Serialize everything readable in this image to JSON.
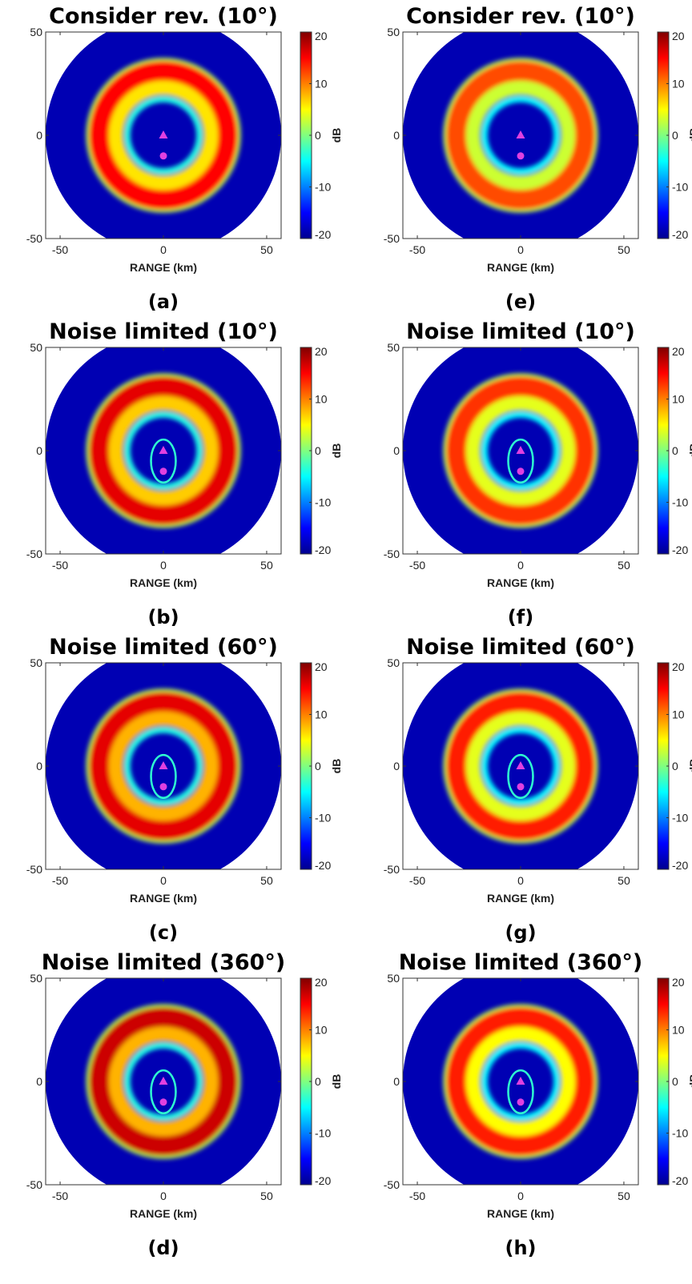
{
  "chart_data": [
    {
      "type": "heatmap",
      "panel_label": "(a)",
      "title": "Consider rev. (10°)",
      "xlabel": "RANGE (km)",
      "ylabel": "",
      "xlim": [
        -57,
        57
      ],
      "ylim": [
        -50,
        50
      ],
      "xticks": [
        -50,
        0,
        50
      ],
      "yticks": [
        -50,
        0,
        50
      ],
      "colorbar": {
        "label": "dB",
        "range": [
          -20,
          20
        ],
        "ticks": [
          20,
          10,
          0,
          -10,
          -20
        ],
        "colormap": "jet"
      },
      "markers": [
        {
          "shape": "triangle",
          "x": 0,
          "y": 0,
          "color": "#e040e0"
        },
        {
          "shape": "circle",
          "x": 0,
          "y": -10,
          "color": "#e040e0"
        }
      ],
      "disk_radius_km": 57,
      "inner_shadow_km": 0,
      "rings": [
        {
          "radius_km": 36,
          "width_km": 3,
          "value_db": 2
        },
        {
          "radius_km": 31,
          "width_km": 10,
          "value_db": 15
        },
        {
          "radius_km": 23,
          "width_km": 7,
          "value_db": 6
        },
        {
          "radius_km": 17.5,
          "width_km": 3,
          "value_db": -4
        }
      ]
    },
    {
      "type": "heatmap",
      "panel_label": "(b)",
      "title": "Noise limited (10°)",
      "xlabel": "RANGE (km)",
      "ylabel": "",
      "xlim": [
        -57,
        57
      ],
      "ylim": [
        -50,
        50
      ],
      "xticks": [
        -50,
        0,
        50
      ],
      "yticks": [
        -50,
        0,
        50
      ],
      "colorbar": {
        "label": "dB",
        "range": [
          -20,
          20
        ],
        "ticks": [
          20,
          10,
          0,
          -10,
          -20
        ],
        "colormap": "jet"
      },
      "markers": [
        {
          "shape": "triangle",
          "x": 0,
          "y": 0,
          "color": "#e040e0"
        },
        {
          "shape": "circle",
          "x": 0,
          "y": -10,
          "color": "#e040e0"
        }
      ],
      "disk_radius_km": 57,
      "inner_shadow_km": 8,
      "rings": [
        {
          "radius_km": 36,
          "width_km": 3,
          "value_db": 2
        },
        {
          "radius_km": 31,
          "width_km": 10,
          "value_db": 16
        },
        {
          "radius_km": 23,
          "width_km": 7,
          "value_db": 7
        },
        {
          "radius_km": 17.5,
          "width_km": 3,
          "value_db": -4
        }
      ]
    },
    {
      "type": "heatmap",
      "panel_label": "(c)",
      "title": "Noise limited (60°)",
      "xlabel": "RANGE (km)",
      "ylabel": "",
      "xlim": [
        -57,
        57
      ],
      "ylim": [
        -50,
        50
      ],
      "xticks": [
        -50,
        0,
        50
      ],
      "yticks": [
        -50,
        0,
        50
      ],
      "colorbar": {
        "label": "dB",
        "range": [
          -20,
          20
        ],
        "ticks": [
          20,
          10,
          0,
          -10,
          -20
        ],
        "colormap": "jet"
      },
      "markers": [
        {
          "shape": "triangle",
          "x": 0,
          "y": 0,
          "color": "#e040e0"
        },
        {
          "shape": "circle",
          "x": 0,
          "y": -10,
          "color": "#e040e0"
        }
      ],
      "disk_radius_km": 57,
      "inner_shadow_km": 8,
      "rings": [
        {
          "radius_km": 36,
          "width_km": 3,
          "value_db": 2
        },
        {
          "radius_km": 31,
          "width_km": 10,
          "value_db": 16
        },
        {
          "radius_km": 23,
          "width_km": 7,
          "value_db": 8
        },
        {
          "radius_km": 17.5,
          "width_km": 3,
          "value_db": -4
        }
      ]
    },
    {
      "type": "heatmap",
      "panel_label": "(d)",
      "title": "Noise limited (360°)",
      "xlabel": "RANGE (km)",
      "ylabel": "",
      "xlim": [
        -57,
        57
      ],
      "ylim": [
        -50,
        50
      ],
      "xticks": [
        -50,
        0,
        50
      ],
      "yticks": [
        -50,
        0,
        50
      ],
      "colorbar": {
        "label": "dB",
        "range": [
          -20,
          20
        ],
        "ticks": [
          20,
          10,
          0,
          -10,
          -20
        ],
        "colormap": "jet"
      },
      "markers": [
        {
          "shape": "triangle",
          "x": 0,
          "y": 0,
          "color": "#e040e0"
        },
        {
          "shape": "circle",
          "x": 0,
          "y": -10,
          "color": "#e040e0"
        }
      ],
      "disk_radius_km": 57,
      "inner_shadow_km": 8,
      "rings": [
        {
          "radius_km": 36,
          "width_km": 3,
          "value_db": 2
        },
        {
          "radius_km": 31,
          "width_km": 10,
          "value_db": 17
        },
        {
          "radius_km": 23,
          "width_km": 7,
          "value_db": 8
        },
        {
          "radius_km": 17.5,
          "width_km": 3,
          "value_db": -4
        }
      ]
    },
    {
      "type": "heatmap",
      "panel_label": "(e)",
      "title": "Consider rev. (10°)",
      "xlabel": "RANGE (km)",
      "ylabel": "",
      "xlim": [
        -57,
        57
      ],
      "ylim": [
        -50,
        50
      ],
      "xticks": [
        -50,
        0,
        50
      ],
      "yticks": [
        -50,
        0,
        50
      ],
      "colorbar": {
        "label": "dB",
        "range": [
          -20,
          20
        ],
        "ticks": [
          20,
          10,
          0,
          -10,
          -20
        ],
        "colormap": "jet"
      },
      "markers": [
        {
          "shape": "triangle",
          "x": 0,
          "y": 0,
          "color": "#e040e0"
        },
        {
          "shape": "circle",
          "x": 0,
          "y": -10,
          "color": "#e040e0"
        }
      ],
      "disk_radius_km": 57,
      "inner_shadow_km": 0,
      "rings": [
        {
          "radius_km": 36,
          "width_km": 3,
          "value_db": 2
        },
        {
          "radius_km": 31,
          "width_km": 10,
          "value_db": 12
        },
        {
          "radius_km": 23,
          "width_km": 7,
          "value_db": 3
        },
        {
          "radius_km": 17.5,
          "width_km": 3,
          "value_db": -5
        }
      ]
    },
    {
      "type": "heatmap",
      "panel_label": "(f)",
      "title": "Noise limited (10°)",
      "xlabel": "RANGE (km)",
      "ylabel": "",
      "xlim": [
        -57,
        57
      ],
      "ylim": [
        -50,
        50
      ],
      "xticks": [
        -50,
        0,
        50
      ],
      "yticks": [
        -50,
        0,
        50
      ],
      "colorbar": {
        "label": "dB",
        "range": [
          -20,
          20
        ],
        "ticks": [
          20,
          10,
          0,
          -10,
          -20
        ],
        "colormap": "jet"
      },
      "markers": [
        {
          "shape": "triangle",
          "x": 0,
          "y": 0,
          "color": "#e040e0"
        },
        {
          "shape": "circle",
          "x": 0,
          "y": -10,
          "color": "#e040e0"
        }
      ],
      "disk_radius_km": 57,
      "inner_shadow_km": 8,
      "rings": [
        {
          "radius_km": 36,
          "width_km": 3,
          "value_db": 2
        },
        {
          "radius_km": 31,
          "width_km": 10,
          "value_db": 13
        },
        {
          "radius_km": 23,
          "width_km": 7,
          "value_db": 4
        },
        {
          "radius_km": 17.5,
          "width_km": 3,
          "value_db": -5
        }
      ]
    },
    {
      "type": "heatmap",
      "panel_label": "(g)",
      "title": "Noise limited (60°)",
      "xlabel": "RANGE (km)",
      "ylabel": "",
      "xlim": [
        -57,
        57
      ],
      "ylim": [
        -50,
        50
      ],
      "xticks": [
        -50,
        0,
        50
      ],
      "yticks": [
        -50,
        0,
        50
      ],
      "colorbar": {
        "label": "dB",
        "range": [
          -20,
          20
        ],
        "ticks": [
          20,
          10,
          0,
          -10,
          -20
        ],
        "colormap": "jet"
      },
      "markers": [
        {
          "shape": "triangle",
          "x": 0,
          "y": 0,
          "color": "#e040e0"
        },
        {
          "shape": "circle",
          "x": 0,
          "y": -10,
          "color": "#e040e0"
        }
      ],
      "disk_radius_km": 57,
      "inner_shadow_km": 8,
      "rings": [
        {
          "radius_km": 36,
          "width_km": 3,
          "value_db": 2
        },
        {
          "radius_km": 31,
          "width_km": 10,
          "value_db": 14
        },
        {
          "radius_km": 23,
          "width_km": 7,
          "value_db": 4
        },
        {
          "radius_km": 17.5,
          "width_km": 3,
          "value_db": -5
        }
      ]
    },
    {
      "type": "heatmap",
      "panel_label": "(h)",
      "title": "Noise limited (360°)",
      "xlabel": "RANGE (km)",
      "ylabel": "",
      "xlim": [
        -57,
        57
      ],
      "ylim": [
        -50,
        50
      ],
      "xticks": [
        -50,
        0,
        50
      ],
      "yticks": [
        -50,
        0,
        50
      ],
      "colorbar": {
        "label": "dB",
        "range": [
          -20,
          20
        ],
        "ticks": [
          20,
          10,
          0,
          -10,
          -20
        ],
        "colormap": "jet"
      },
      "markers": [
        {
          "shape": "triangle",
          "x": 0,
          "y": 0,
          "color": "#e040e0"
        },
        {
          "shape": "circle",
          "x": 0,
          "y": -10,
          "color": "#e040e0"
        }
      ],
      "disk_radius_km": 57,
      "inner_shadow_km": 8,
      "rings": [
        {
          "radius_km": 36,
          "width_km": 3,
          "value_db": 2
        },
        {
          "radius_km": 31,
          "width_km": 10,
          "value_db": 14
        },
        {
          "radius_km": 23,
          "width_km": 7,
          "value_db": 5
        },
        {
          "radius_km": 17.5,
          "width_km": 3,
          "value_db": -5
        }
      ]
    }
  ]
}
